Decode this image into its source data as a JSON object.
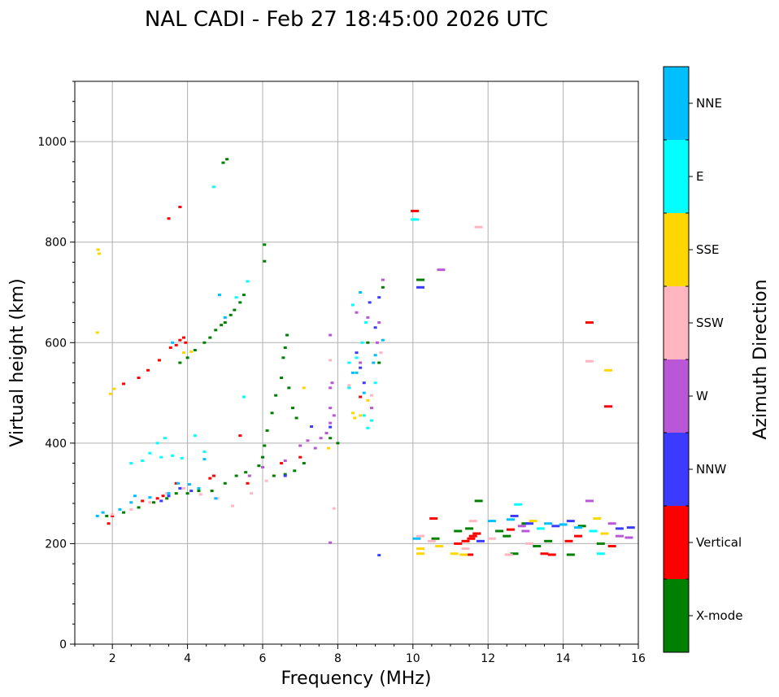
{
  "chart_data": {
    "type": "scatter",
    "title": "NAL CADI - Feb 27 18:45:00 2026 UTC",
    "xlabel": "Frequency (MHz)",
    "ylabel": "Virtual height (km)",
    "xlim": [
      1,
      16
    ],
    "ylim": [
      0,
      1120
    ],
    "xticks": [
      "2",
      "4",
      "6",
      "8",
      "10",
      "12",
      "14",
      "16"
    ],
    "yticks": [
      "0",
      "200",
      "400",
      "600",
      "800",
      "1000"
    ],
    "grid": true,
    "colorbar": {
      "label": "Azimuth Direction",
      "categories": [
        "X-mode",
        "Vertical",
        "NNW",
        "W",
        "SSW",
        "SSE",
        "E",
        "NNE"
      ],
      "colors": [
        "#008000",
        "#ff0000",
        "#3b3bff",
        "#b957d6",
        "#ffb6c1",
        "#ffd700",
        "#00ffff",
        "#00bfff"
      ]
    },
    "series": [
      {
        "name": "X-mode",
        "points": [
          [
            1.85,
            255
          ],
          [
            2.3,
            262
          ],
          [
            2.7,
            272
          ],
          [
            3.1,
            282
          ],
          [
            3.45,
            290
          ],
          [
            3.7,
            300
          ],
          [
            4.0,
            300
          ],
          [
            4.3,
            305
          ],
          [
            4.65,
            305
          ],
          [
            5.0,
            320
          ],
          [
            5.3,
            335
          ],
          [
            5.55,
            342
          ],
          [
            5.9,
            355
          ],
          [
            6.0,
            372
          ],
          [
            6.05,
            395
          ],
          [
            6.12,
            425
          ],
          [
            6.25,
            460
          ],
          [
            6.35,
            495
          ],
          [
            6.5,
            530
          ],
          [
            6.55,
            570
          ],
          [
            6.6,
            590
          ],
          [
            6.65,
            615
          ],
          [
            6.7,
            510
          ],
          [
            6.8,
            470
          ],
          [
            6.9,
            450
          ],
          [
            6.3,
            335
          ],
          [
            6.6,
            338
          ],
          [
            6.85,
            345
          ],
          [
            7.1,
            360
          ],
          [
            3.8,
            560
          ],
          [
            4.0,
            570
          ],
          [
            4.2,
            585
          ],
          [
            4.45,
            600
          ],
          [
            4.6,
            610
          ],
          [
            4.75,
            625
          ],
          [
            4.9,
            635
          ],
          [
            5.0,
            640
          ],
          [
            5.15,
            655
          ],
          [
            5.25,
            665
          ],
          [
            5.4,
            680
          ],
          [
            5.5,
            695
          ],
          [
            5.05,
            965
          ],
          [
            4.95,
            958
          ],
          [
            6.05,
            762
          ],
          [
            6.05,
            795
          ],
          [
            7.8,
            410
          ],
          [
            8.0,
            400
          ],
          [
            9.2,
            710
          ],
          [
            8.8,
            600
          ],
          [
            10.2,
            725
          ],
          [
            10.6,
            210
          ],
          [
            11.2,
            225
          ],
          [
            11.5,
            230
          ],
          [
            11.7,
            220
          ],
          [
            11.75,
            285
          ],
          [
            12.3,
            225
          ],
          [
            12.5,
            215
          ],
          [
            12.7,
            180
          ],
          [
            13.0,
            240
          ],
          [
            13.3,
            195
          ],
          [
            13.6,
            205
          ],
          [
            14.2,
            178
          ],
          [
            14.5,
            235
          ],
          [
            15.0,
            200
          ],
          [
            9.1,
            560
          ]
        ]
      },
      {
        "name": "Vertical",
        "points": [
          [
            1.9,
            240
          ],
          [
            2.0,
            255
          ],
          [
            2.8,
            285
          ],
          [
            3.2,
            290
          ],
          [
            3.35,
            295
          ],
          [
            3.7,
            320
          ],
          [
            2.95,
            545
          ],
          [
            3.25,
            565
          ],
          [
            3.55,
            590
          ],
          [
            3.7,
            595
          ],
          [
            3.8,
            605
          ],
          [
            3.9,
            610
          ],
          [
            3.95,
            600
          ],
          [
            2.3,
            518
          ],
          [
            2.7,
            530
          ],
          [
            3.5,
            847
          ],
          [
            3.8,
            870
          ],
          [
            4.6,
            330
          ],
          [
            4.7,
            335
          ],
          [
            5.4,
            415
          ],
          [
            5.6,
            320
          ],
          [
            6.5,
            360
          ],
          [
            7.0,
            372
          ],
          [
            10.05,
            862
          ],
          [
            11.2,
            200
          ],
          [
            11.4,
            205
          ],
          [
            11.55,
            210
          ],
          [
            11.6,
            215
          ],
          [
            11.7,
            220
          ],
          [
            11.5,
            178
          ],
          [
            13.5,
            180
          ],
          [
            13.7,
            178
          ],
          [
            14.15,
            205
          ],
          [
            14.4,
            215
          ],
          [
            15.2,
            473
          ],
          [
            14.7,
            640
          ],
          [
            15.3,
            195
          ],
          [
            12.6,
            228
          ],
          [
            10.55,
            250
          ],
          [
            8.6,
            492
          ]
        ]
      },
      {
        "name": "NNW",
        "points": [
          [
            3.3,
            285
          ],
          [
            3.5,
            295
          ],
          [
            3.8,
            310
          ],
          [
            4.1,
            305
          ],
          [
            6.6,
            335
          ],
          [
            7.3,
            433
          ],
          [
            7.8,
            432
          ],
          [
            9.1,
            177
          ],
          [
            10.2,
            710
          ],
          [
            11.8,
            205
          ],
          [
            12.7,
            255
          ],
          [
            13.1,
            240
          ],
          [
            13.8,
            235
          ],
          [
            14.2,
            245
          ],
          [
            15.5,
            230
          ],
          [
            15.8,
            232
          ],
          [
            8.6,
            550
          ],
          [
            8.85,
            680
          ],
          [
            9.0,
            630
          ],
          [
            8.7,
            520
          ],
          [
            9.1,
            690
          ],
          [
            8.5,
            580
          ]
        ]
      },
      {
        "name": "W",
        "points": [
          [
            5.65,
            335
          ],
          [
            6.0,
            352
          ],
          [
            6.6,
            365
          ],
          [
            7.0,
            395
          ],
          [
            7.2,
            405
          ],
          [
            7.4,
            390
          ],
          [
            7.55,
            410
          ],
          [
            7.7,
            420
          ],
          [
            7.8,
            440
          ],
          [
            7.8,
            470
          ],
          [
            7.9,
            455
          ],
          [
            7.8,
            510
          ],
          [
            7.85,
            520
          ],
          [
            7.8,
            615
          ],
          [
            7.8,
            202
          ],
          [
            9.2,
            725
          ],
          [
            8.9,
            470
          ],
          [
            8.8,
            650
          ],
          [
            8.5,
            660
          ],
          [
            9.1,
            640
          ],
          [
            8.6,
            560
          ],
          [
            14.7,
            285
          ],
          [
            15.5,
            215
          ],
          [
            15.75,
            212
          ],
          [
            15.3,
            240
          ],
          [
            13.0,
            225
          ],
          [
            12.9,
            235
          ],
          [
            10.75,
            745
          ],
          [
            9.05,
            600
          ]
        ]
      },
      {
        "name": "SSW",
        "points": [
          [
            2.0,
            258
          ],
          [
            2.5,
            268
          ],
          [
            3.0,
            282
          ],
          [
            3.45,
            300
          ],
          [
            3.9,
            310
          ],
          [
            4.35,
            298
          ],
          [
            4.8,
            290
          ],
          [
            5.2,
            275
          ],
          [
            5.7,
            300
          ],
          [
            6.1,
            325
          ],
          [
            7.8,
            565
          ],
          [
            7.9,
            270
          ],
          [
            8.9,
            495
          ],
          [
            10.2,
            215
          ],
          [
            10.5,
            205
          ],
          [
            11.4,
            190
          ],
          [
            11.6,
            245
          ],
          [
            12.1,
            210
          ],
          [
            12.55,
            178
          ],
          [
            13.1,
            200
          ],
          [
            14.7,
            563
          ],
          [
            11.75,
            830
          ],
          [
            8.3,
            515
          ],
          [
            9.15,
            580
          ]
        ]
      },
      {
        "name": "SSE",
        "points": [
          [
            1.6,
            620
          ],
          [
            1.62,
            785
          ],
          [
            1.65,
            777
          ],
          [
            1.95,
            498
          ],
          [
            2.05,
            508
          ],
          [
            3.9,
            580
          ],
          [
            4.1,
            582
          ],
          [
            7.1,
            510
          ],
          [
            7.75,
            390
          ],
          [
            8.45,
            450
          ],
          [
            8.4,
            460
          ],
          [
            8.6,
            455
          ],
          [
            10.2,
            180
          ],
          [
            10.2,
            190
          ],
          [
            10.7,
            195
          ],
          [
            11.1,
            180
          ],
          [
            11.35,
            178
          ],
          [
            14.9,
            250
          ],
          [
            15.2,
            545
          ],
          [
            13.2,
            245
          ],
          [
            15.1,
            220
          ],
          [
            8.8,
            485
          ]
        ]
      },
      {
        "name": "E",
        "points": [
          [
            3.2,
            400
          ],
          [
            3.4,
            410
          ],
          [
            3.6,
            375
          ],
          [
            3.85,
            370
          ],
          [
            4.2,
            415
          ],
          [
            3.0,
            380
          ],
          [
            2.8,
            365
          ],
          [
            3.3,
            372
          ],
          [
            2.5,
            360
          ],
          [
            4.45,
            383
          ],
          [
            4.7,
            910
          ],
          [
            5.3,
            690
          ],
          [
            5.6,
            722
          ],
          [
            5.5,
            492
          ],
          [
            8.3,
            510
          ],
          [
            8.5,
            570
          ],
          [
            8.65,
            600
          ],
          [
            8.8,
            430
          ],
          [
            8.9,
            445
          ],
          [
            8.7,
            455
          ],
          [
            8.3,
            560
          ],
          [
            10.05,
            845
          ],
          [
            12.8,
            278
          ],
          [
            13.4,
            230
          ],
          [
            15.0,
            180
          ],
          [
            14.8,
            225
          ],
          [
            9.0,
            520
          ],
          [
            8.4,
            675
          ],
          [
            8.75,
            640
          ]
        ]
      },
      {
        "name": "NNE",
        "points": [
          [
            1.6,
            255
          ],
          [
            1.75,
            262
          ],
          [
            2.2,
            268
          ],
          [
            2.5,
            282
          ],
          [
            2.6,
            295
          ],
          [
            3.0,
            292
          ],
          [
            3.5,
            300
          ],
          [
            3.75,
            320
          ],
          [
            4.05,
            318
          ],
          [
            4.3,
            310
          ],
          [
            4.85,
            695
          ],
          [
            4.45,
            368
          ],
          [
            3.6,
            600
          ],
          [
            5.0,
            650
          ],
          [
            12.1,
            245
          ],
          [
            12.6,
            248
          ],
          [
            13.6,
            240
          ],
          [
            14.0,
            238
          ],
          [
            14.4,
            232
          ],
          [
            10.1,
            210
          ],
          [
            8.5,
            540
          ],
          [
            8.7,
            500
          ],
          [
            9.0,
            575
          ],
          [
            8.95,
            560
          ],
          [
            9.2,
            605
          ],
          [
            8.4,
            540
          ],
          [
            8.6,
            700
          ],
          [
            4.75,
            290
          ]
        ]
      }
    ]
  }
}
